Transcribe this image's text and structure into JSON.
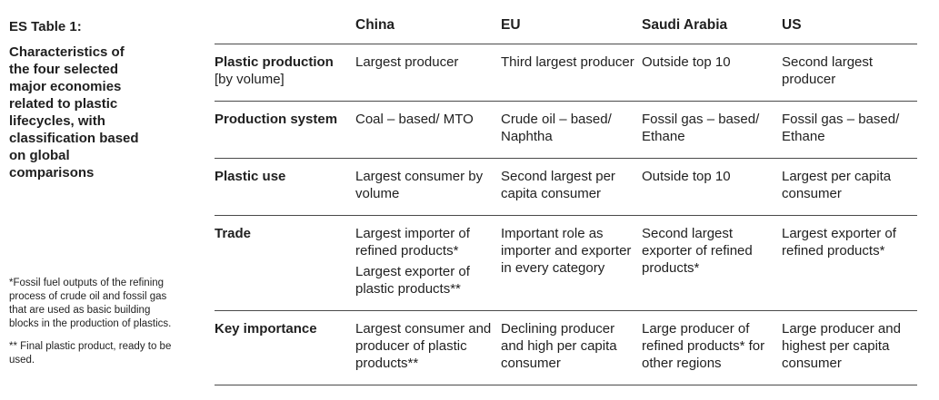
{
  "side": {
    "title": "ES Table 1:",
    "caption": "Characteristics of the four selected major economies related to plastic lifecycles, with classification based on global comparisons"
  },
  "notes": [
    "*Fossil fuel outputs of the refining process of crude oil and fossil gas that are used as basic building blocks in the production of plastics.",
    "** Final plastic product, ready to be used."
  ],
  "table": {
    "headers": [
      "",
      "China",
      "EU",
      "Saudi Arabia",
      "US"
    ],
    "rows": [
      {
        "label": "Plastic production",
        "sublabel": "[by volume]",
        "cells": [
          [
            "Largest producer"
          ],
          [
            "Third largest producer"
          ],
          [
            "Outside top 10"
          ],
          [
            "Second largest producer"
          ]
        ]
      },
      {
        "label": "Production system",
        "sublabel": "",
        "cells": [
          [
            "Coal – based/ MTO"
          ],
          [
            "Crude oil – based/ Naphtha"
          ],
          [
            "Fossil gas – based/ Ethane"
          ],
          [
            "Fossil gas – based/ Ethane"
          ]
        ]
      },
      {
        "label": "Plastic use",
        "sublabel": "",
        "cells": [
          [
            "Largest consumer by volume"
          ],
          [
            "Second largest per capita consumer"
          ],
          [
            "Outside top 10"
          ],
          [
            "Largest per capita consumer"
          ]
        ]
      },
      {
        "label": "Trade",
        "sublabel": "",
        "cells": [
          [
            "Largest importer of refined products*",
            "Largest exporter of plastic products**"
          ],
          [
            "Important role as importer and exporter in every category"
          ],
          [
            "Second largest exporter of refined products*"
          ],
          [
            "Largest exporter of refined products*"
          ]
        ]
      },
      {
        "label": "Key importance",
        "sublabel": "",
        "cells": [
          [
            "Largest consumer and producer of plastic products**"
          ],
          [
            "Declining producer and high per capita consumer"
          ],
          [
            "Large producer of refined products* for other regions"
          ],
          [
            "Large producer and highest per capita consumer"
          ]
        ]
      }
    ]
  }
}
